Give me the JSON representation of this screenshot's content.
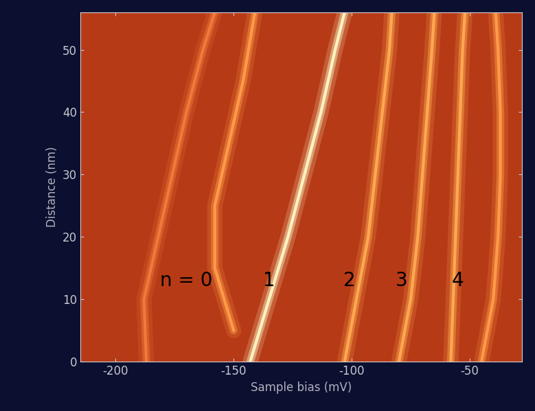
{
  "chart_data": {
    "type": "line",
    "x_label": "Sample bias (mV)",
    "y_label": "Distance (nm)",
    "xlim": [
      -215,
      -28
    ],
    "ylim": [
      0,
      56
    ],
    "xticks": [
      -200,
      -150,
      -100,
      -50
    ],
    "yticks": [
      0,
      10,
      20,
      30,
      40,
      50
    ],
    "grid": false,
    "series": [
      {
        "color": "#f07a3a",
        "x": [
          -187,
          -188,
          -182,
          -176,
          -170,
          -163,
          -158
        ],
        "values": [
          0,
          10,
          20,
          30,
          40,
          50,
          56
        ]
      },
      {
        "color": "#ff9a48",
        "x": [
          -150,
          -158,
          -158,
          -152,
          -146,
          -141
        ],
        "values": [
          5,
          15,
          25,
          35,
          45,
          56
        ]
      },
      {
        "color": "#fff2c0",
        "x": [
          -143,
          -135,
          -127,
          -120,
          -113,
          -107,
          -103
        ],
        "values": [
          0,
          10,
          20,
          30,
          40,
          50,
          56
        ]
      },
      {
        "color": "#ffa850",
        "x": [
          -103,
          -98,
          -93,
          -90,
          -87,
          -84,
          -83
        ],
        "values": [
          0,
          10,
          20,
          30,
          40,
          50,
          56
        ]
      },
      {
        "color": "#ffa850",
        "x": [
          -80,
          -75,
          -72,
          -70,
          -68,
          -66,
          -65
        ],
        "values": [
          0,
          10,
          20,
          30,
          40,
          50,
          56
        ]
      },
      {
        "color": "#ffa850",
        "x": [
          -58,
          -57,
          -56,
          -55,
          -54,
          -53,
          -52
        ],
        "values": [
          0,
          10,
          20,
          30,
          40,
          50,
          56
        ]
      },
      {
        "color": "#ff9a48",
        "x": [
          -45,
          -40,
          -38,
          -37,
          -37,
          -38,
          -39
        ],
        "values": [
          0,
          10,
          20,
          30,
          40,
          50,
          56
        ]
      }
    ],
    "annotations": [
      {
        "text": "n = 0",
        "x": -170,
        "y": 13
      },
      {
        "text": "1",
        "x": -135,
        "y": 13
      },
      {
        "text": "2",
        "x": -101,
        "y": 13
      },
      {
        "text": "3",
        "x": -79,
        "y": 13
      },
      {
        "text": "4",
        "x": -55,
        "y": 13
      }
    ]
  }
}
